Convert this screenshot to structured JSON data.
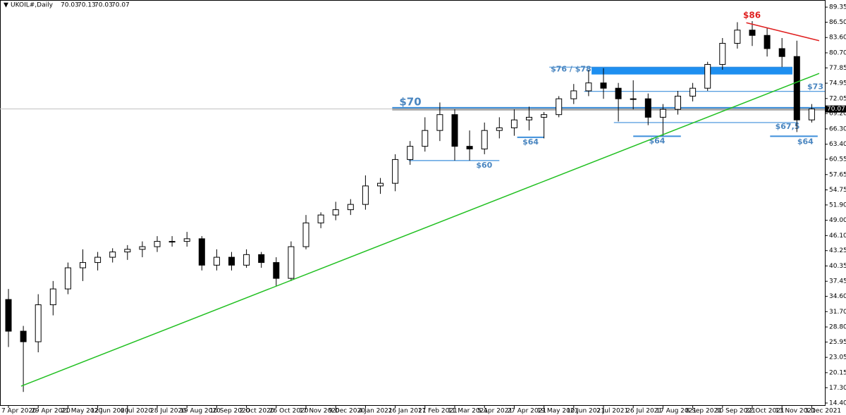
{
  "chart_data": {
    "type": "candlestick",
    "title": "UKOIL#,Daily",
    "ohlc": [
      70.03,
      70.13,
      70.03,
      70.07
    ],
    "categories": [
      "7 Apr 2020",
      null,
      "29 Apr 2020",
      null,
      "21 May 2020",
      null,
      "12 Jun 2020",
      null,
      "6 Jul 2020",
      null,
      "28 Jul 2020",
      null,
      "19 Aug 2020",
      null,
      "10 Sep 2020",
      null,
      "2 Oct 2020",
      null,
      "26 Oct 2020",
      null,
      "17 Nov 2020",
      null,
      "9 Dec 2020",
      null,
      "4 Jan 2021",
      null,
      "26 Jan 2021",
      null,
      "17 Feb 2021",
      null,
      "11 Mar 2021",
      null,
      "5 Apr 2021",
      null,
      "27 Apr 2021",
      null,
      "19 May 2021",
      null,
      "10 Jun 2021",
      null,
      "2 Jul 2021",
      null,
      "26 Jul 2021",
      null,
      "17 Aug 2021",
      null,
      "8 Sep 2021",
      null,
      "30 Sep 2021",
      null,
      "22 Oct 2021",
      null,
      "13 Nov 2021",
      null,
      "3 Dec 2021"
    ],
    "open": [
      34,
      28,
      26,
      33,
      36,
      40,
      41,
      42,
      43,
      43.5,
      44,
      45,
      45,
      45.5,
      40.5,
      42,
      40.5,
      42.5,
      41,
      38,
      44,
      48.5,
      50,
      51,
      52,
      55.5,
      56,
      60.5,
      63,
      66,
      69,
      63,
      62.5,
      66,
      66.5,
      68,
      68.5,
      69,
      72,
      73.5,
      75,
      74,
      72,
      72,
      68.5,
      70,
      72.5,
      74,
      78.5,
      82.5,
      85,
      84,
      81.5,
      80,
      68
    ],
    "high": [
      36,
      29,
      35,
      37.5,
      41,
      43.5,
      43,
      43.7,
      44.3,
      45,
      46,
      46,
      46.8,
      46,
      43.5,
      43,
      43.5,
      43,
      42,
      45,
      50,
      50.5,
      52.5,
      53,
      57.5,
      57,
      61.5,
      64,
      68.5,
      71.3,
      70,
      66,
      67.5,
      68.5,
      70,
      70.5,
      69.5,
      72.5,
      74.8,
      77.5,
      77.8,
      75,
      75.5,
      73,
      71,
      73.5,
      75,
      79,
      83.5,
      86.5,
      86.7,
      85.5,
      83.5,
      83,
      71
    ],
    "low": [
      25,
      16.5,
      24,
      31,
      35,
      37.5,
      39.5,
      41,
      41.5,
      42,
      43,
      44,
      44,
      39.5,
      39.5,
      39.5,
      40,
      40,
      36.5,
      37.5,
      43.5,
      47.5,
      49,
      50,
      51,
      54,
      54.5,
      59.5,
      62,
      64,
      60.3,
      60.3,
      61.5,
      64.5,
      65,
      66,
      64.5,
      68.5,
      71,
      72.5,
      72,
      67.7,
      70,
      67,
      65,
      69,
      71.5,
      73.5,
      77.5,
      81.5,
      82,
      80,
      78,
      65.7,
      67.5
    ],
    "close": [
      28,
      26,
      33,
      36,
      40,
      41,
      42,
      43,
      43.5,
      44,
      45,
      45,
      45.5,
      40.5,
      42,
      40.5,
      42.5,
      41,
      38,
      44,
      48.5,
      50,
      51,
      52,
      55.5,
      56,
      60.5,
      63,
      66,
      69,
      63,
      62.5,
      66,
      66.5,
      68,
      68.5,
      69,
      72,
      73.5,
      75,
      74,
      72,
      72,
      68.5,
      70,
      72.5,
      74,
      78.5,
      82.5,
      85,
      84,
      81.5,
      80,
      68,
      70.07
    ],
    "ylim": [
      14.0,
      90.7
    ],
    "yticks": [
      89.35,
      {
        "value": 86.5,
        "label": "86.50"
      },
      {
        "value": 83.6,
        "label": "83.60"
      },
      {
        "value": 80.7,
        "label": "80.70"
      },
      77.85,
      74.95,
      72.05,
      {
        "value": 69.2,
        "label": "69.20"
      },
      {
        "value": 66.3,
        "label": "66.30"
      },
      {
        "value": 63.4,
        "label": "63.40"
      },
      60.55,
      57.65,
      54.75,
      {
        "value": 51.9,
        "label": "51.90"
      },
      {
        "value": 49,
        "label": "49.00"
      },
      {
        "value": 46.1,
        "label": "46.10"
      },
      43.25,
      40.35,
      37.45,
      {
        "value": 34.6,
        "label": "34.60"
      },
      {
        "value": 31.7,
        "label": "31.70"
      },
      {
        "value": 28.8,
        "label": "28.80"
      },
      25.95,
      23.05,
      20.15,
      {
        "value": 17.3,
        "label": "17.30"
      },
      {
        "value": 14.4,
        "label": "14.40"
      }
    ],
    "levels": [
      {
        "label": "$70",
        "value": 70.3,
        "from": 25.8,
        "to": 55
      },
      {
        "label": "$73",
        "value": 73.4,
        "from": 38.7,
        "to": 55
      },
      {
        "label": "$67,5",
        "value": 67.5,
        "from": 40.7,
        "to": 53.1
      },
      {
        "label": "$64",
        "value": 64.7,
        "from": 34.2,
        "to": 36
      },
      {
        "label": "$64",
        "value": 64.9,
        "from": 42,
        "to": 45.2
      },
      {
        "label": "$64",
        "value": 64.9,
        "from": 51.2,
        "to": 54.4
      },
      {
        "label": "$60",
        "value": 60.3,
        "from": 26.9,
        "to": 33
      }
    ],
    "band": {
      "label": "$76 / $78",
      "low": 76.6,
      "high": 78.0,
      "from": 39.2,
      "to": 52.7
    },
    "trendlines": [
      {
        "color": "#22c022",
        "points": [
          [
            0.85,
            17.6
          ],
          [
            54.5,
            76.8
          ]
        ]
      },
      {
        "color": "#e02020",
        "label": "$86",
        "points": [
          [
            49.6,
            86.4
          ],
          [
            54.5,
            83.0
          ]
        ]
      }
    ]
  }
}
